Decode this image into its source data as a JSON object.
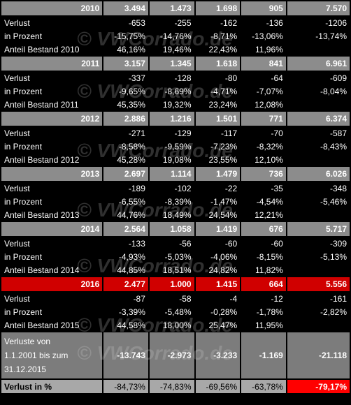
{
  "watermark": "© VWCorrado.de",
  "blocks": [
    {
      "year": "2010",
      "highlight": false,
      "totals": [
        "3.494",
        "1.473",
        "1.698",
        "905",
        "7.570"
      ],
      "rows": [
        {
          "label": "Verlust",
          "values": [
            "-653",
            "-255",
            "-162",
            "-136",
            "-1206"
          ]
        },
        {
          "label": "in Prozent",
          "values": [
            "-15,75%",
            "-14,76%",
            "-8,71%",
            "-13,06%",
            "-13,74%"
          ]
        },
        {
          "label": "Anteil Bestand 2010",
          "values": [
            "46,16%",
            "19,46%",
            "22,43%",
            "11,96%",
            ""
          ]
        }
      ]
    },
    {
      "year": "2011",
      "highlight": false,
      "totals": [
        "3.157",
        "1.345",
        "1.618",
        "841",
        "6.961"
      ],
      "rows": [
        {
          "label": "Verlust",
          "values": [
            "-337",
            "-128",
            "-80",
            "-64",
            "-609"
          ]
        },
        {
          "label": "in Prozent",
          "values": [
            "-9,65%",
            "-8,69%",
            "-4,71%",
            "-7,07%",
            "-8,04%"
          ]
        },
        {
          "label": "Anteil Bestand 2011",
          "values": [
            "45,35%",
            "19,32%",
            "23,24%",
            "12,08%",
            ""
          ]
        }
      ]
    },
    {
      "year": "2012",
      "highlight": false,
      "totals": [
        "2.886",
        "1.216",
        "1.501",
        "771",
        "6.374"
      ],
      "rows": [
        {
          "label": "Verlust",
          "values": [
            "-271",
            "-129",
            "-117",
            "-70",
            "-587"
          ]
        },
        {
          "label": "in Prozent",
          "values": [
            "-8,58%",
            "-9,59%",
            "-7,23%",
            "-8,32%",
            "-8,43%"
          ]
        },
        {
          "label": "Anteil Bestand 2012",
          "values": [
            "45,28%",
            "19,08%",
            "23,55%",
            "12,10%",
            ""
          ]
        }
      ]
    },
    {
      "year": "2013",
      "highlight": false,
      "totals": [
        "2.697",
        "1.114",
        "1.479",
        "736",
        "6.026"
      ],
      "rows": [
        {
          "label": "Verlust",
          "values": [
            "-189",
            "-102",
            "-22",
            "-35",
            "-348"
          ]
        },
        {
          "label": "in Prozent",
          "values": [
            "-6,55%",
            "-8,39%",
            "-1,47%",
            "-4,54%",
            "-5,46%"
          ]
        },
        {
          "label": "Anteil Bestand 2013",
          "values": [
            "44,76%",
            "18,49%",
            "24,54%",
            "12,21%",
            ""
          ]
        }
      ]
    },
    {
      "year": "2014",
      "highlight": false,
      "totals": [
        "2.564",
        "1.058",
        "1.419",
        "676",
        "5.717"
      ],
      "rows": [
        {
          "label": "Verlust",
          "values": [
            "-133",
            "-56",
            "-60",
            "-60",
            "-309"
          ]
        },
        {
          "label": "in Prozent",
          "values": [
            "-4,93%",
            "-5,03%",
            "-4,06%",
            "-8,15%",
            "-5,13%"
          ]
        },
        {
          "label": "Anteil Bestand 2014",
          "values": [
            "44,85%",
            "18,51%",
            "24,82%",
            "11,82%",
            ""
          ]
        }
      ]
    },
    {
      "year": "2016",
      "highlight": true,
      "totals": [
        "2.477",
        "1.000",
        "1.415",
        "664",
        "5.556"
      ],
      "rows": [
        {
          "label": "Verlust",
          "values": [
            "-87",
            "-58",
            "-4",
            "-12",
            "-161"
          ]
        },
        {
          "label": "in Prozent",
          "values": [
            "-3,39%",
            "-5,48%",
            "-0,28%",
            "-1,78%",
            "-2,82%"
          ]
        },
        {
          "label": "Anteil Bestand 2015",
          "values": [
            "44,58%",
            "18,00%",
            "25,47%",
            "11,95%",
            ""
          ]
        }
      ]
    }
  ],
  "summary": {
    "label_lines": [
      "Verluste von",
      "1.1.2001 bis zum",
      "31.12.2015"
    ],
    "values": [
      "-13.743",
      "-2.973",
      "-3.233",
      "-1.169",
      "-21.118"
    ]
  },
  "final": {
    "label": "Verlust in %",
    "values": [
      "-84,73%",
      "-74,83%",
      "-69,56%",
      "-63,78%",
      "-79,17%"
    ]
  },
  "colors": {
    "header_bg": "#8c8c8c",
    "highlight": "#d00000",
    "final_highlight": "#ff0000"
  }
}
